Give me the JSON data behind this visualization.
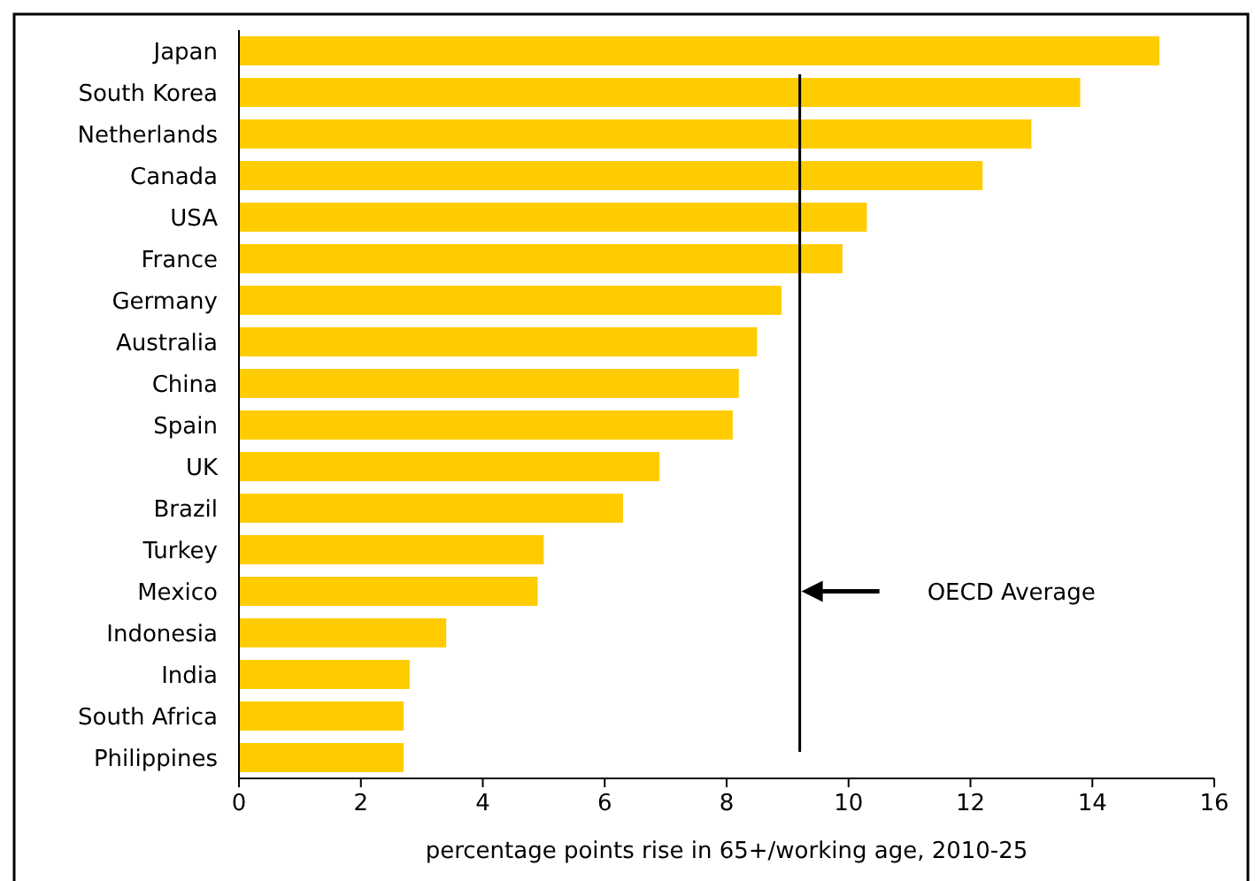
{
  "chart_data": {
    "type": "bar",
    "orientation": "horizontal",
    "xlabel": "percentage points rise in 65+/working age, 2010-25",
    "categories": [
      "Japan",
      "South Korea",
      "Netherlands",
      "Canada",
      "USA",
      "France",
      "Germany",
      "Australia",
      "China",
      "Spain",
      "UK",
      "Brazil",
      "Turkey",
      "Mexico",
      "Indonesia",
      "India",
      "South Africa",
      "Philippines"
    ],
    "values": [
      15.1,
      13.8,
      13.0,
      12.2,
      10.3,
      9.9,
      8.9,
      8.5,
      8.2,
      8.1,
      6.9,
      6.3,
      5.0,
      4.9,
      3.4,
      2.8,
      2.7,
      2.7
    ],
    "color": "#ffcc00",
    "xlim": [
      0,
      16
    ],
    "xticks": [
      0,
      2,
      4,
      6,
      8,
      10,
      12,
      14,
      16
    ],
    "grid": false,
    "ref_lines": [
      {
        "axis": "x",
        "value": 9.2,
        "label": "OECD Average",
        "color": "#000000"
      }
    ]
  }
}
